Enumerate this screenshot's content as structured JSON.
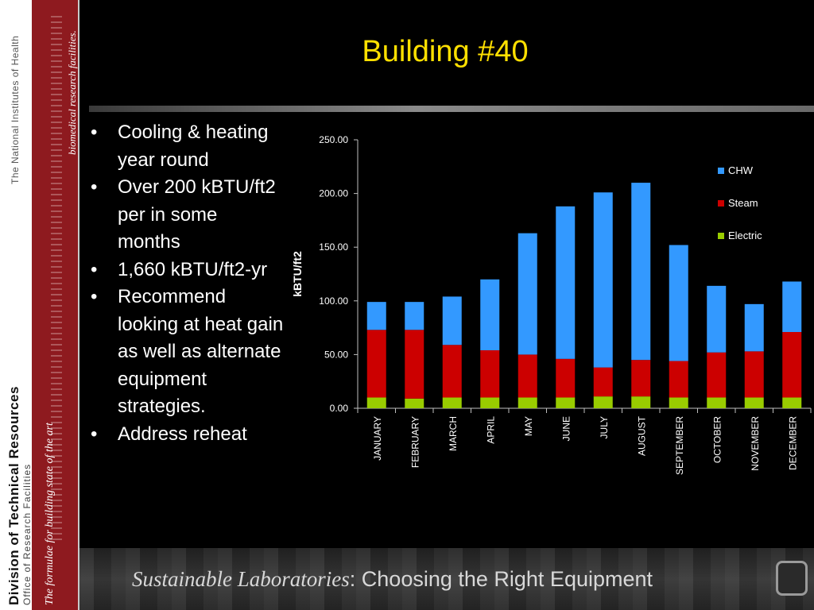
{
  "slide": {
    "title": "Building #40",
    "bullets": [
      "Cooling & heating year round",
      "Over 200 kBTU/ft2 per in some months",
      "1,660 kBTU/ft2-yr",
      "Recommend looking at heat gain as well as alternate equipment strategies.",
      "Address reheat"
    ],
    "bullet_symbol": "•"
  },
  "banner": {
    "division": "Division of Technical Resources",
    "office": "Office of Research Facilities",
    "nih": "The National Institutes of Health",
    "formulae": "The formulae for building state of the art",
    "biomedical": "biomedical research facilities."
  },
  "footer": {
    "lead": "Sustainable Laboratories",
    "rest": ": Choosing the Right Equipment"
  },
  "chart_data": {
    "type": "bar",
    "stacked": true,
    "ylabel": "kBTU/ft2",
    "ylim": [
      0,
      250
    ],
    "yticks": [
      "0.00",
      "50.00",
      "100.00",
      "150.00",
      "200.00",
      "250.00"
    ],
    "categories": [
      "JANUARY",
      "FEBRUARY",
      "MARCH",
      "APRIL",
      "MAY",
      "JUNE",
      "JULY",
      "AUGUST",
      "SEPTEMBER",
      "OCTOBER",
      "NOVEMBER",
      "DECEMBER"
    ],
    "series": [
      {
        "name": "Electric",
        "color": "#99cc00",
        "values": [
          10,
          9,
          10,
          10,
          10,
          10,
          11,
          11,
          10,
          10,
          10,
          10
        ]
      },
      {
        "name": "Steam",
        "color": "#cc0000",
        "values": [
          63,
          64,
          49,
          44,
          40,
          36,
          27,
          34,
          34,
          42,
          43,
          61
        ]
      },
      {
        "name": "CHW",
        "color": "#3399ff",
        "values": [
          26,
          26,
          45,
          66,
          113,
          142,
          163,
          165,
          108,
          62,
          44,
          47
        ]
      }
    ],
    "legend_order": [
      "CHW",
      "Steam",
      "Electric"
    ],
    "legend_position": "right",
    "grid": false
  }
}
